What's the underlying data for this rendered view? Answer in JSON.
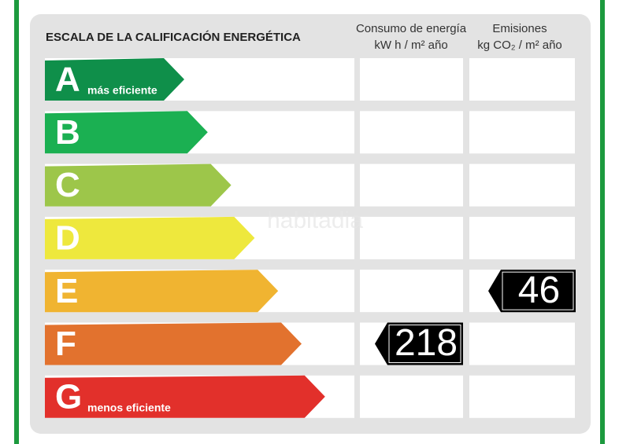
{
  "header": {
    "title": "ESCALA DE LA CALIFICACIÓN ENERGÉTICA",
    "consumption": {
      "title": "Consumo de energía",
      "unit": "kW h  / m² año"
    },
    "emissions": {
      "title": "Emisiones",
      "unit": "kg CO₂  / m² año"
    }
  },
  "watermark": "habitadia",
  "rows": [
    {
      "letter": "A",
      "note": "más eficiente",
      "color": "#0f8f4a",
      "consumption": null,
      "emissions": null
    },
    {
      "letter": "B",
      "color": "#1bb052",
      "consumption": null,
      "emissions": null
    },
    {
      "letter": "C",
      "color": "#9dc64a",
      "consumption": null,
      "emissions": null
    },
    {
      "letter": "D",
      "color": "#eee83d",
      "consumption": null,
      "emissions": null
    },
    {
      "letter": "E",
      "color": "#f0b431",
      "consumption": null,
      "emissions": 46
    },
    {
      "letter": "F",
      "color": "#e2722e",
      "consumption": 218,
      "emissions": null
    },
    {
      "letter": "G",
      "note": "menos eficiente",
      "color": "#e2302b",
      "consumption": null,
      "emissions": null
    }
  ]
}
